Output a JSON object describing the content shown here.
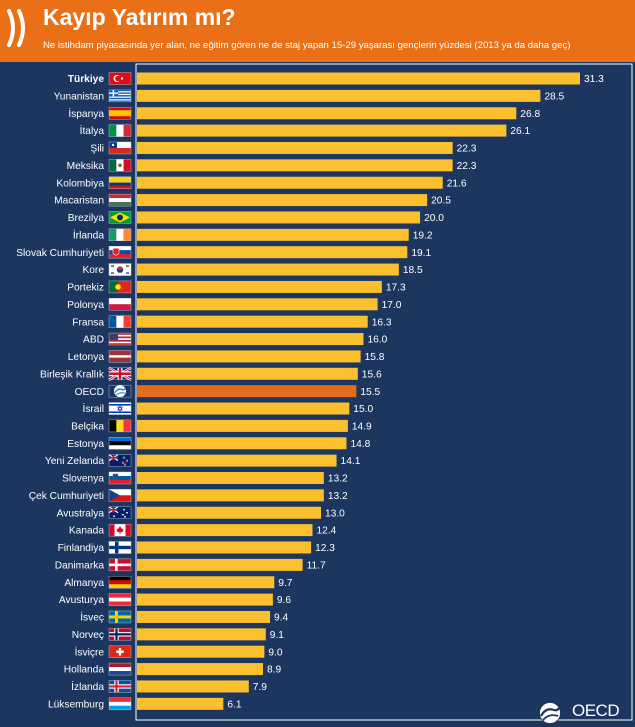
{
  "header": {
    "title": "Kayıp Yatırım mı?",
    "subtitle": "Ne istihdam piyasasında yer alan, ne eğitim gören ne de staj yapan 15-29 yaşarası gençlerin yüzdesi (2013 ya da daha geç)",
    "logo_icon": "oecd-chevrons-icon"
  },
  "footer": {
    "brand": "OECD",
    "brand_icon": "oecd-globe-icon"
  },
  "colors": {
    "background": "#1c3660",
    "header": "#e97017",
    "bar": "#fbc02d",
    "highlight_bar": "#e46c1d",
    "frame": "#ffffff"
  },
  "chart_data": {
    "type": "bar",
    "orientation": "horizontal",
    "title": "Kayıp Yatırım mı?",
    "subtitle": "Ne istihdam piyasasında yer alan, ne eğitim gören ne de staj yapan 15-29 yaşarası gençlerin yüzdesi (2013 ya da daha geç)",
    "xlim": [
      0,
      33
    ],
    "grid": false,
    "legend": "none",
    "highlight": "OECD",
    "bold_category": "Türkiye",
    "categories": [
      "Türkiye",
      "Yunanistan",
      "İspanya",
      "İtalya",
      "Şili",
      "Meksika",
      "Kolombiya",
      "Macaristan",
      "Brezilya",
      "İrlanda",
      "Slovak Cumhuriyeti",
      "Kore",
      "Portekiz",
      "Polonya",
      "Fransa",
      "ABD",
      "Letonya",
      "Birleşik Krallık",
      "OECD",
      "İsrail",
      "Belçika",
      "Estonya",
      "Yeni Zelanda",
      "Slovenya",
      "Çek Cumhuriyeti",
      "Avustralya",
      "Kanada",
      "Finlandiya",
      "Danimarka",
      "Almanya",
      "Avusturya",
      "İsveç",
      "Norveç",
      "İsviçre",
      "Hollanda",
      "İzlanda",
      "Lüksemburg"
    ],
    "values": [
      31.3,
      28.5,
      26.8,
      26.1,
      22.3,
      22.3,
      21.6,
      20.5,
      20.0,
      19.2,
      19.1,
      18.5,
      17.3,
      17.0,
      16.3,
      16.0,
      15.8,
      15.6,
      15.5,
      15.0,
      14.9,
      14.8,
      14.1,
      13.2,
      13.2,
      13.0,
      12.4,
      12.3,
      11.7,
      9.7,
      9.6,
      9.4,
      9.1,
      9.0,
      8.9,
      7.9,
      6.1
    ],
    "value_labels": [
      "31.3",
      "28.5",
      "26.8",
      "26.1",
      "22.3",
      "22.3",
      "21.6",
      "20.5",
      "20.0",
      "19.2",
      "19.1",
      "18.5",
      "17.3",
      "17.0",
      "16.3",
      "16.0",
      "15.8",
      "15.6",
      "15.5",
      "15.0",
      "14.9",
      "14.8",
      "14.1",
      "13.2",
      "13.2",
      "13.0",
      "12.4",
      "12.3",
      "11.7",
      "9.7",
      "9.6",
      "9.4",
      "9.1",
      "9.0",
      "8.9",
      "7.9",
      "6.1"
    ],
    "flag_icons": [
      "flag-turkey-icon",
      "flag-greece-icon",
      "flag-spain-icon",
      "flag-italy-icon",
      "flag-chile-icon",
      "flag-mexico-icon",
      "flag-colombia-icon",
      "flag-hungary-icon",
      "flag-brazil-icon",
      "flag-ireland-icon",
      "flag-slovakia-icon",
      "flag-korea-icon",
      "flag-portugal-icon",
      "flag-poland-icon",
      "flag-france-icon",
      "flag-usa-icon",
      "flag-latvia-icon",
      "flag-uk-icon",
      "oecd-globe-icon",
      "flag-israel-icon",
      "flag-belgium-icon",
      "flag-estonia-icon",
      "flag-new-zealand-icon",
      "flag-slovenia-icon",
      "flag-czech-icon",
      "flag-australia-icon",
      "flag-canada-icon",
      "flag-finland-icon",
      "flag-denmark-icon",
      "flag-germany-icon",
      "flag-austria-icon",
      "flag-sweden-icon",
      "flag-norway-icon",
      "flag-switzerland-icon",
      "flag-netherlands-icon",
      "flag-iceland-icon",
      "flag-luxembourg-icon"
    ]
  }
}
